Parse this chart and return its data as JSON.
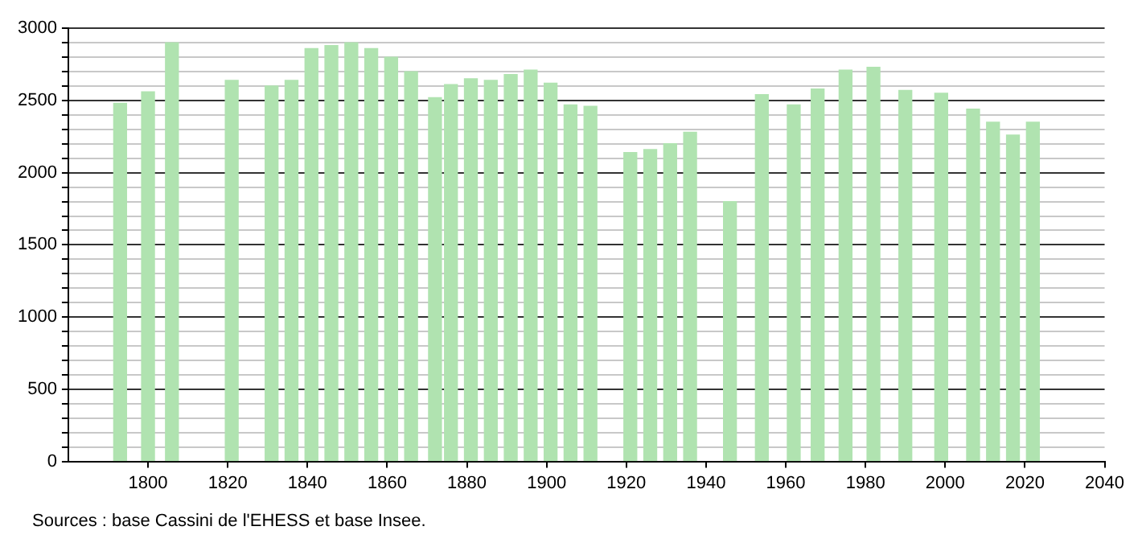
{
  "chart_data": {
    "type": "bar",
    "x": [
      1793,
      1800,
      1806,
      1821,
      1831,
      1836,
      1841,
      1846,
      1851,
      1856,
      1861,
      1866,
      1872,
      1876,
      1881,
      1886,
      1891,
      1896,
      1901,
      1906,
      1911,
      1921,
      1926,
      1931,
      1936,
      1946,
      1954,
      1962,
      1968,
      1975,
      1982,
      1990,
      1999,
      2007,
      2012,
      2017,
      2022
    ],
    "values": [
      2480,
      2560,
      2900,
      2640,
      2600,
      2640,
      2860,
      2880,
      2900,
      2860,
      2800,
      2700,
      2520,
      2610,
      2650,
      2640,
      2680,
      2710,
      2620,
      2470,
      2460,
      2140,
      2160,
      2200,
      2280,
      1800,
      2540,
      2470,
      2580,
      2710,
      2730,
      2570,
      2550,
      2440,
      2350,
      2260,
      2350
    ],
    "color": "#b0e3b0",
    "xlim": [
      1780,
      2040
    ],
    "xticks": [
      1800,
      1820,
      1840,
      1860,
      1880,
      1900,
      1920,
      1940,
      1960,
      1980,
      2000,
      2020,
      2040
    ],
    "ylim": [
      0,
      3000
    ],
    "yticks": [
      0,
      {
        "value": 100,
        "label": null
      },
      {
        "value": 200,
        "label": null
      },
      {
        "value": 300,
        "label": null
      },
      {
        "value": 400,
        "label": null
      },
      500,
      {
        "value": 600,
        "label": null
      },
      {
        "value": 700,
        "label": null
      },
      {
        "value": 800,
        "label": null
      },
      {
        "value": 900,
        "label": null
      },
      1000,
      {
        "value": 1100,
        "label": null
      },
      {
        "value": 1200,
        "label": null
      },
      {
        "value": 1300,
        "label": null
      },
      {
        "value": 1400,
        "label": null
      },
      1500,
      {
        "value": 1600,
        "label": null
      },
      {
        "value": 1700,
        "label": null
      },
      {
        "value": 1800,
        "label": null
      },
      {
        "value": 1900,
        "label": null
      },
      2000,
      {
        "value": 2100,
        "label": null
      },
      {
        "value": 2200,
        "label": null
      },
      {
        "value": 2300,
        "label": null
      },
      {
        "value": 2400,
        "label": null
      },
      2500,
      {
        "value": 2600,
        "label": null
      },
      {
        "value": 2700,
        "label": null
      },
      {
        "value": 2800,
        "label": null
      },
      {
        "value": 2900,
        "label": null
      },
      3000
    ],
    "grid": "y",
    "annotations": [
      "Sources : base Cassini de l'EHESS et base Insee."
    ]
  }
}
